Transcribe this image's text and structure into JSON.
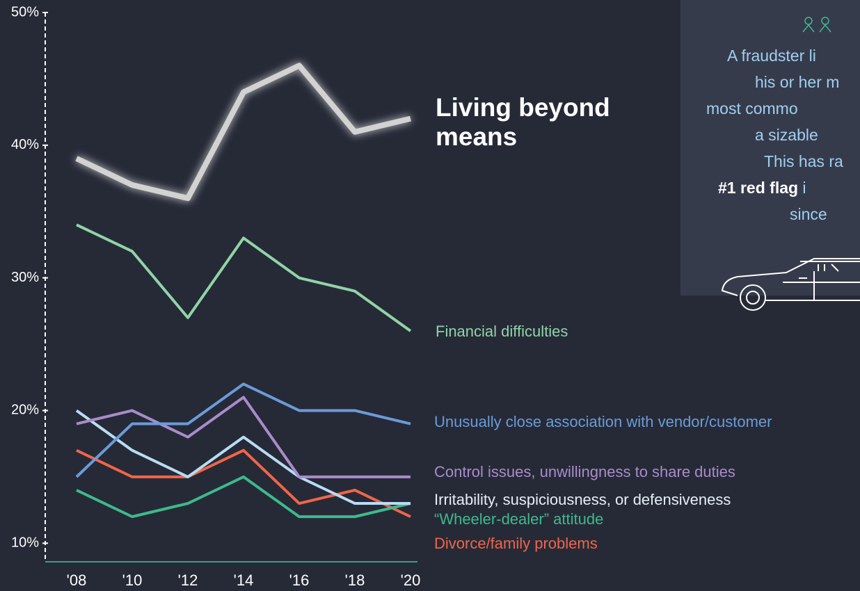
{
  "chart_data": {
    "type": "line",
    "categories": [
      "'08",
      "'10",
      "'12",
      "'14",
      "'16",
      "'18",
      "'20"
    ],
    "ylim": [
      8.6,
      50
    ],
    "yticks": [
      {
        "value": 10,
        "label": "10%"
      },
      {
        "value": 20,
        "label": "20%"
      },
      {
        "value": 30,
        "label": "30%"
      },
      {
        "value": 40,
        "label": "40%"
      },
      {
        "value": 50,
        "label": "50%"
      }
    ],
    "grid": false,
    "series": [
      {
        "name": "Living beyond means",
        "color": "#d2d2d2",
        "values": [
          39,
          37,
          36,
          44,
          46,
          41,
          42
        ]
      },
      {
        "name": "Financial difficulties",
        "color": "#91d4a8",
        "values": [
          34,
          32,
          27,
          33,
          30,
          29,
          26
        ]
      },
      {
        "name": "Unusually close association with vendor/customer",
        "color": "#6b9bd8",
        "values": [
          15,
          19,
          19,
          22,
          20,
          20,
          19
        ]
      },
      {
        "name": "Control issues, unwillingness to share duties",
        "color": "#a98cca",
        "values": [
          19,
          20,
          18,
          21,
          15,
          15,
          15
        ]
      },
      {
        "name": "Irritability, suspiciousness, or defensiveness",
        "color": "#b9dcf4",
        "values": [
          20,
          17,
          15,
          18,
          15,
          13,
          13
        ]
      },
      {
        "name": "“Wheeler-dealer” attitude",
        "color": "#3dba8d",
        "values": [
          14,
          12,
          13,
          15,
          12,
          12,
          13
        ]
      },
      {
        "name": "Divorce/family problems",
        "color": "#f26549",
        "values": [
          17,
          15,
          15,
          17,
          13,
          14,
          12
        ]
      }
    ]
  },
  "info_box": {
    "lines": [
      [
        {
          "text": "A fraudster li"
        }
      ],
      [
        {
          "text": "his or her m"
        }
      ],
      [
        {
          "text": "most commo"
        }
      ],
      [
        {
          "text": "a sizable"
        }
      ],
      [
        {
          "text": "This has ra"
        }
      ],
      [
        {
          "text": "#1 red flag",
          "bold": true
        },
        {
          "text": " i"
        }
      ],
      [
        {
          "text": "since"
        }
      ]
    ]
  }
}
